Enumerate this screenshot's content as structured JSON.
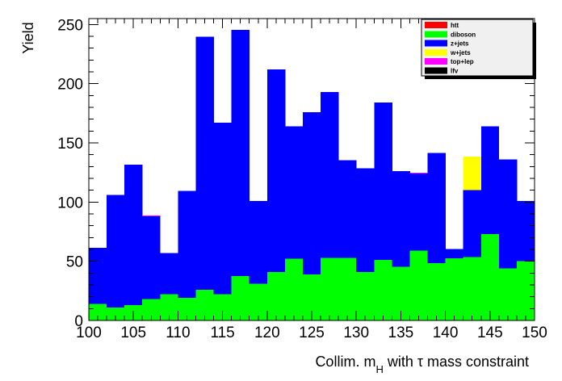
{
  "chart_data": {
    "type": "bar",
    "stacked": true,
    "bin_edges": [
      100,
      102,
      104,
      106,
      108,
      110,
      112,
      114,
      116,
      118,
      120,
      122,
      124,
      126,
      128,
      130,
      132,
      134,
      136,
      138,
      140,
      142,
      144,
      146,
      148,
      150
    ],
    "series": [
      {
        "name": "lfv",
        "color": "#000000",
        "values": [
          0,
          0,
          0,
          0,
          0,
          0,
          0,
          0,
          0,
          0,
          0,
          0,
          0,
          0,
          0,
          0,
          0,
          0,
          0,
          0,
          0,
          0,
          0,
          0,
          0
        ]
      },
      {
        "name": "top+lep",
        "color": "#ff00ff",
        "values": [
          0,
          0,
          0,
          0.7,
          0,
          0,
          0,
          0,
          0,
          0,
          0,
          0,
          0,
          0,
          0,
          0,
          0,
          0,
          0.8,
          0,
          0,
          0,
          0,
          0,
          0
        ]
      },
      {
        "name": "w+jets",
        "color": "#ffff00",
        "values": [
          0,
          0,
          0,
          0,
          0,
          0,
          0,
          0,
          0,
          0,
          0,
          0,
          0,
          0,
          0,
          0,
          0,
          0,
          0,
          0,
          0,
          28.5,
          0,
          0,
          0
        ]
      },
      {
        "name": "z+jets",
        "color": "#0000ff",
        "values": [
          47.5,
          95,
          118.5,
          70,
          35,
          90.5,
          213.5,
          145,
          208,
          70,
          171,
          112,
          137,
          140,
          82.5,
          87.5,
          133,
          80.5,
          65,
          93,
          8,
          56.5,
          91,
          92,
          51
        ]
      },
      {
        "name": "diboson",
        "color": "#00ff00",
        "values": [
          14,
          11,
          13,
          18,
          22,
          19,
          26,
          22,
          37.5,
          31,
          41,
          52,
          39,
          53,
          53,
          41,
          51,
          45.5,
          59,
          48.5,
          52.5,
          53.5,
          73,
          44,
          50
        ]
      },
      {
        "name": "htt",
        "color": "#ff0000",
        "values": [
          0,
          0,
          0,
          0,
          0,
          0,
          0,
          0,
          0,
          0,
          0,
          0,
          0,
          0,
          0,
          0,
          0,
          0,
          0,
          0,
          0,
          0,
          0,
          0,
          0
        ]
      }
    ],
    "legend_entries": [
      "htt",
      "diboson",
      "z+jets",
      "w+jets",
      "top+lep",
      "lfv"
    ],
    "legend_placement": "top-right",
    "xlim": [
      100,
      150
    ],
    "ylim": [
      0,
      255
    ],
    "xticks": [
      "100",
      "105",
      "110",
      "115",
      "120",
      "125",
      "130",
      "135",
      "140",
      "145",
      "150"
    ],
    "yticks": [
      "0",
      "50",
      "100",
      "150",
      "200",
      "250"
    ],
    "ylabel": "Yield",
    "xlabel": {
      "prefix": "Collim. m",
      "subscript": "H",
      "suffix": " with τ mass constraint"
    },
    "grid": false
  }
}
